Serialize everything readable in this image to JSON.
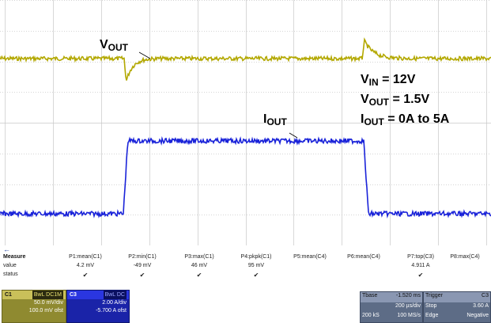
{
  "labels": {
    "vout_top": {
      "main": "V",
      "sub": "OUT"
    },
    "iout_trace": {
      "main": "I",
      "sub": "OUT"
    },
    "vin_cond": {
      "main": "V",
      "sub": "IN",
      "rest": " = 12V"
    },
    "vout_cond": {
      "main": "V",
      "sub": "OUT",
      "rest": " = 1.5V"
    },
    "iout_cond": {
      "main": "I",
      "sub": "OUT",
      "rest": " = 0A to 5A"
    }
  },
  "channel_markers": {
    "c1": "C1",
    "c3": "C3"
  },
  "colors": {
    "ch1": "#b3a800",
    "ch3": "#1a23d9",
    "grid": "#c8c8c8",
    "panel_blue": "#5d6c86"
  },
  "measure": {
    "header": "Measure",
    "row_value": "value",
    "row_status": "status",
    "columns": [
      {
        "name": "P1:mean(C1)",
        "value": "4.2 mV",
        "status": "✔"
      },
      {
        "name": "P2:min(C1)",
        "value": "-49 mV",
        "status": "✔"
      },
      {
        "name": "P3:max(C1)",
        "value": "46 mV",
        "status": "✔"
      },
      {
        "name": "P4:pkpk(C1)",
        "value": "95 mV",
        "status": "✔"
      },
      {
        "name": "P5:mean(C4)",
        "value": "",
        "status": ""
      },
      {
        "name": "P6:mean(C4)",
        "value": "",
        "status": ""
      },
      {
        "name": "P7:top(C3)",
        "value": "4.911 A",
        "status": "✔"
      },
      {
        "name": "P8:max(C4)",
        "value": "",
        "status": ""
      }
    ]
  },
  "ch1_box": {
    "tag": "C1",
    "mode": "BwL DC1M",
    "vdiv": "50.0 mV/div",
    "offset": "100.0 mV ofst"
  },
  "ch3_box": {
    "tag": "C3",
    "mode": "BwL DC",
    "adiv": "2.00 A/div",
    "offset": "-5.700 A ofst"
  },
  "timebase": {
    "title": "Tbase",
    "delay": "-1.520 ms",
    "tdiv": "200 µs/div",
    "samples": "200 kS",
    "rate": "100 MS/s"
  },
  "trigger": {
    "title": "Trigger",
    "ch": "C3",
    "mode": "Stop",
    "level": "3.60 A",
    "type": "Edge",
    "slope": "Negative"
  }
}
